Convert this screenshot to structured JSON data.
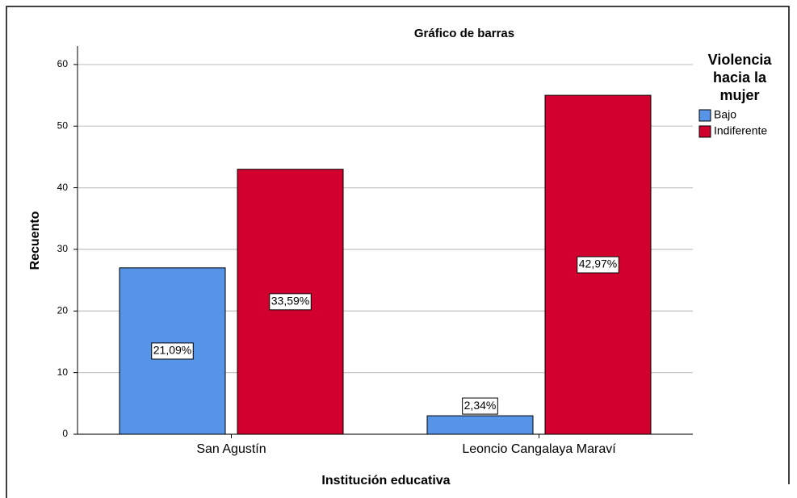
{
  "chart_data": {
    "type": "bar",
    "title": "Gráfico de barras",
    "x_label": "Institución educativa",
    "y_label": "Recuento",
    "categories": [
      "San Agustín",
      "Leoncio Cangalaya Maraví"
    ],
    "legend_title": [
      "Violencia",
      "hacia la",
      "mujer"
    ],
    "series": [
      {
        "name": "Bajo",
        "color": "#5594e6",
        "values": [
          27,
          3
        ],
        "percent_labels": [
          "21,09%",
          "2,34%"
        ]
      },
      {
        "name": "Indiferente",
        "color": "#d1002f",
        "values": [
          43,
          55
        ],
        "percent_labels": [
          "33,59%",
          "42,97%"
        ]
      }
    ],
    "ylim": [
      0,
      63
    ],
    "yticks": [
      0,
      10,
      20,
      30,
      40,
      50,
      60
    ],
    "grid": true,
    "legend": "right"
  }
}
